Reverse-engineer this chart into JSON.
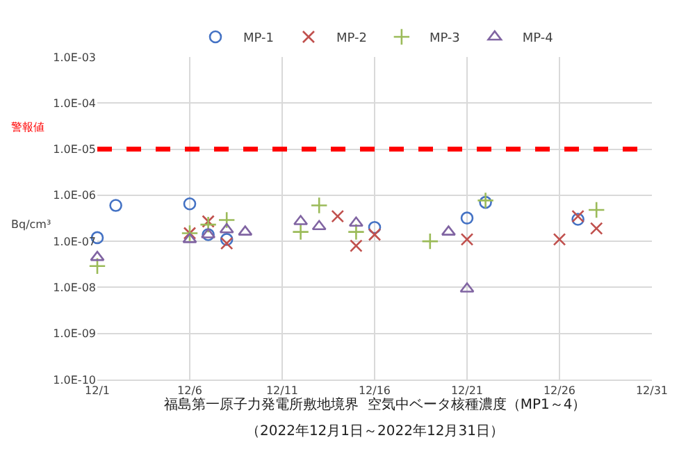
{
  "chart_data": {
    "type": "scatter",
    "title": "福島第一原子力発電所敷地境界  空気中ベータ核種濃度（MP1～4）",
    "subtitle": "（2022年12月1日～2022年12月31日）",
    "ylabel": "Bq/cm³",
    "log": "y",
    "grid": true,
    "legend": "top",
    "xlim": [
      "2022-12-01",
      "2022-12-31"
    ],
    "xticks": [
      {
        "value": "2022-12-01",
        "label": "12/1"
      },
      {
        "value": "2022-12-06",
        "label": "12/6"
      },
      {
        "value": "2022-12-11",
        "label": "12/11"
      },
      {
        "value": "2022-12-16",
        "label": "12/16"
      },
      {
        "value": "2022-12-21",
        "label": "12/21"
      },
      {
        "value": "2022-12-26",
        "label": "12/26"
      },
      {
        "value": "2022-12-31",
        "label": "12/31"
      }
    ],
    "ylim": [
      1e-10,
      0.001
    ],
    "yticks": [
      {
        "value": 1e-10,
        "label": "1.0E-10"
      },
      {
        "value": 1e-09,
        "label": "1.0E-09"
      },
      {
        "value": 1e-08,
        "label": "1.0E-08"
      },
      {
        "value": 1e-07,
        "label": "1.0E-07"
      },
      {
        "value": 1e-06,
        "label": "1.0E-06"
      },
      {
        "value": 1e-05,
        "label": "1.0E-05"
      },
      {
        "value": 0.0001,
        "label": "1.0E-04"
      },
      {
        "value": 0.001,
        "label": "1.0E-03"
      }
    ],
    "ref_lines": [
      {
        "axis": "y",
        "value": 1e-05,
        "label": "警報値",
        "color": "#ff0000",
        "line_style": "dashed"
      }
    ],
    "series": [
      {
        "name": "MP-1",
        "color": "#4472c4",
        "marker": "circle",
        "x": [
          "2022-12-01",
          "2022-12-02",
          "2022-12-06",
          "2022-12-07",
          "2022-12-08",
          "2022-12-16",
          "2022-12-21",
          "2022-12-22",
          "2022-12-27"
        ],
        "values": [
          1.2e-07,
          6e-07,
          6.5e-07,
          1.4e-07,
          1.1e-07,
          2e-07,
          3.2e-07,
          7e-07,
          3e-07
        ]
      },
      {
        "name": "MP-2",
        "color": "#c0504d",
        "marker": "cross",
        "x": [
          "2022-12-06",
          "2022-12-07",
          "2022-12-08",
          "2022-12-14",
          "2022-12-15",
          "2022-12-16",
          "2022-12-21",
          "2022-12-26",
          "2022-12-27",
          "2022-12-28"
        ],
        "values": [
          1.5e-07,
          2.7e-07,
          9e-08,
          3.5e-07,
          8e-08,
          1.4e-07,
          1.1e-07,
          1.1e-07,
          3.5e-07,
          1.9e-07
        ]
      },
      {
        "name": "MP-3",
        "color": "#9bbb59",
        "marker": "plus",
        "x": [
          "2022-12-01",
          "2022-12-06",
          "2022-12-07",
          "2022-12-08",
          "2022-12-12",
          "2022-12-13",
          "2022-12-15",
          "2022-12-19",
          "2022-12-22",
          "2022-12-28"
        ],
        "values": [
          2.9e-08,
          1.5e-07,
          2.3e-07,
          2.9e-07,
          1.6e-07,
          6e-07,
          1.6e-07,
          1e-07,
          7.7e-07,
          4.8e-07
        ]
      },
      {
        "name": "MP-4",
        "color": "#8064a2",
        "marker": "triangle",
        "x": [
          "2022-12-01",
          "2022-12-06",
          "2022-12-07",
          "2022-12-08",
          "2022-12-09",
          "2022-12-12",
          "2022-12-13",
          "2022-12-15",
          "2022-12-20",
          "2022-12-21"
        ],
        "values": [
          4.5e-08,
          1.1e-07,
          1.4e-07,
          1.8e-07,
          1.6e-07,
          2.7e-07,
          2.1e-07,
          2.5e-07,
          1.6e-07,
          9.3e-09
        ]
      }
    ]
  }
}
